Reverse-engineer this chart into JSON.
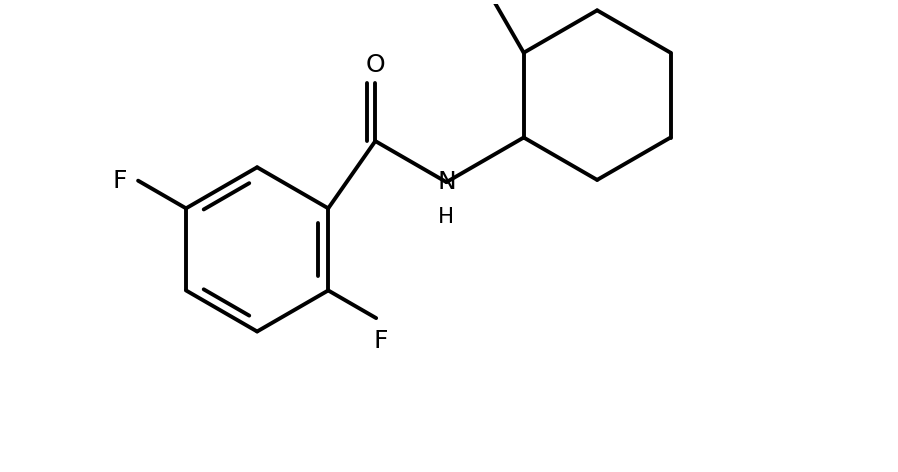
{
  "background_color": "#ffffff",
  "line_color": "#000000",
  "line_width": 2.8,
  "font_size": 18,
  "figsize": [
    8.98,
    4.72
  ],
  "dpi": 100,
  "xlim": [
    0,
    10
  ],
  "ylim": [
    0,
    5.2
  ]
}
